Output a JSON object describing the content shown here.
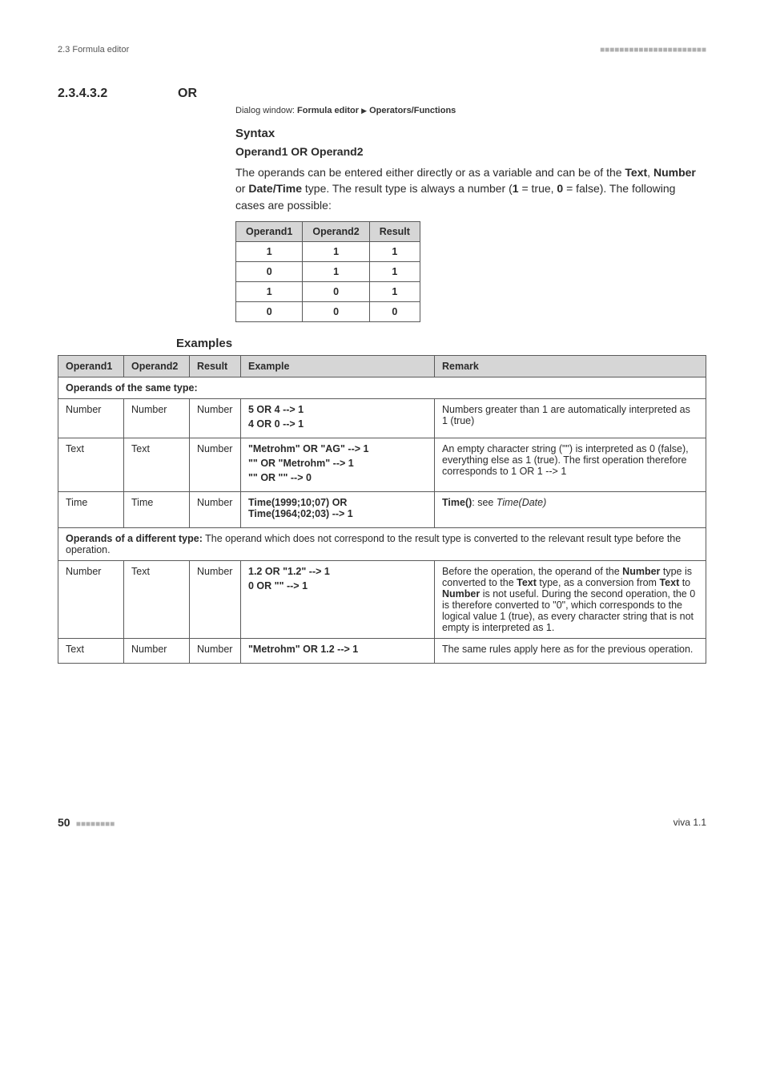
{
  "header": {
    "left": "2.3 Formula editor",
    "dashes": "■■■■■■■■■■■■■■■■■■■■■■"
  },
  "section": {
    "number": "2.3.4.3.2",
    "title": "OR"
  },
  "dialog": {
    "prefix": "Dialog window: ",
    "path_a": "Formula editor",
    "path_b": "Operators/Functions"
  },
  "syntax": {
    "heading": "Syntax",
    "line": "Operand1 OR Operand2"
  },
  "desc": {
    "p1a": "The operands can be entered either directly or as a variable and can be of the ",
    "t1": "Text",
    "sep1": ", ",
    "t2": "Number",
    "sep2": " or ",
    "t3": "Date/Time",
    "p1b": " type. The result type is always a number (",
    "one": "1",
    "eq1": " = true, ",
    "zero": "0",
    "eq0": " = false). The following cases are possible:"
  },
  "truth": {
    "headers": [
      "Operand1",
      "Operand2",
      "Result"
    ],
    "rows": [
      [
        "1",
        "1",
        "1"
      ],
      [
        "0",
        "1",
        "1"
      ],
      [
        "1",
        "0",
        "1"
      ],
      [
        "0",
        "0",
        "0"
      ]
    ]
  },
  "examples_heading": "Examples",
  "ex": {
    "headers": [
      "Operand1",
      "Operand2",
      "Result",
      "Example",
      "Remark"
    ],
    "span1": {
      "b": "Operands of the same type:",
      "rest": ""
    },
    "r1": {
      "c1": "Number",
      "c2": "Number",
      "c3": "Number",
      "e1": "5 OR 4 --> 1",
      "e2": "4 OR 0 --> 1",
      "rem": "Numbers greater than 1 are automatically interpreted as 1 (true)"
    },
    "r2": {
      "c1": "Text",
      "c2": "Text",
      "c3": "Number",
      "e1": "\"Metrohm\" OR \"AG\" --> 1",
      "e2": "\"\" OR \"Metrohm\" --> 1",
      "e3": "\"\" OR \"\" --> 0",
      "rem": "An empty character string (\"\") is interpreted as 0 (false), everything else as 1 (true). The first operation therefore corresponds to 1 OR 1 --> 1"
    },
    "r3": {
      "c1": "Time",
      "c2": "Time",
      "c3": "Number",
      "e1": "Time(1999;10;07) OR Time(1964;02;03) --> 1",
      "rem_b": "Time()",
      "rem_mid": ": see ",
      "rem_i": "Time(Date)"
    },
    "span2": {
      "b": "Operands of a different type:",
      "rest": " The operand which does not correspond to the result type is converted to the relevant result type before the operation."
    },
    "r4": {
      "c1": "Number",
      "c2": "Text",
      "c3": "Number",
      "e1": "1.2 OR \"1.2\" --> 1",
      "e2": "0 OR \"\" --> 1",
      "rem_pre": "Before the operation, the operand of the ",
      "rem_b1": "Number",
      "rem_m1": " type is converted to the ",
      "rem_b2": "Text",
      "rem_m2": " type, as a conversion from ",
      "rem_b3": "Text",
      "rem_m3": " to ",
      "rem_b4": "Number",
      "rem_post": " is not useful. During the second operation, the 0 is therefore converted to \"0\", which corresponds to the logical value 1 (true), as every character string that is not empty is interpreted as 1."
    },
    "r5": {
      "c1": "Text",
      "c2": "Number",
      "c3": "Number",
      "e1": "\"Metrohm\" OR 1.2 --> 1",
      "rem": "The same rules apply here as for the previous operation."
    }
  },
  "footer": {
    "page": "50",
    "dashes": "■■■■■■■■",
    "version": "viva 1.1"
  }
}
